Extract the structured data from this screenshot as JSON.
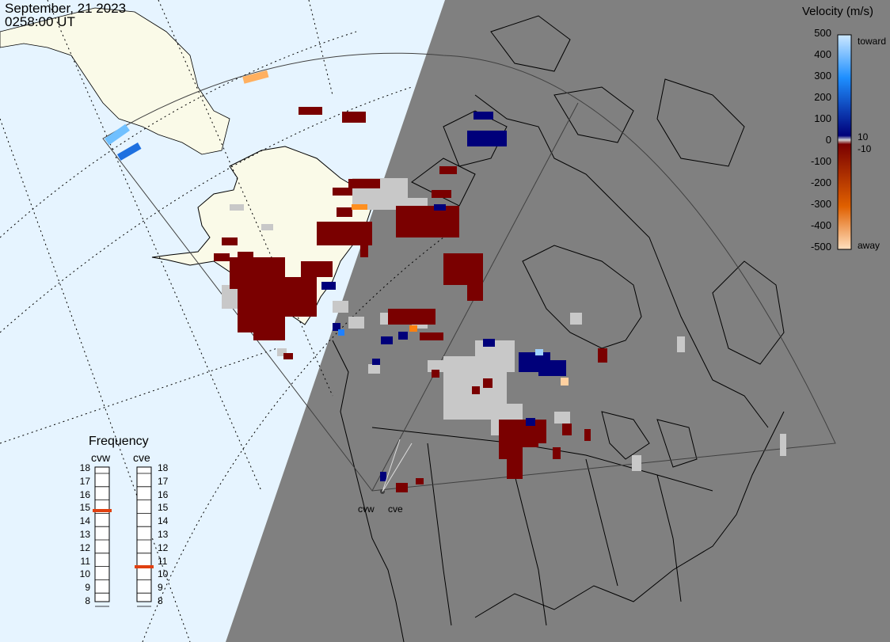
{
  "header": {
    "date": "September, 21 2023",
    "time": "0258:00 UT"
  },
  "colorbar": {
    "title": "Velocity (m/s)",
    "ticks": [
      "500",
      "400",
      "300",
      "200",
      "100",
      "0",
      "-100",
      "-200",
      "-300",
      "-400",
      "-500"
    ],
    "side_labels": {
      "toward": "toward",
      "ten": "10",
      "minus_ten": "-10",
      "away": "away"
    },
    "colors": {
      "toward_light": "#cde8ff",
      "toward_mid": "#1e8fff",
      "toward_dark": "#00007a",
      "zero": "#d0d0d0",
      "away_dark": "#7a0000",
      "away_mid": "#e06000",
      "away_light": "#ffe0bf"
    }
  },
  "frequency": {
    "title": "Frequency",
    "radars": [
      {
        "name": "cvw",
        "mhz": 15
      },
      {
        "name": "cve",
        "mhz": 11
      }
    ],
    "scale": [
      "18",
      "17",
      "16",
      "15",
      "14",
      "13",
      "12",
      "11",
      "10",
      "9",
      "8"
    ],
    "marker_color": "#e04010"
  },
  "map_colors": {
    "ocean_day": "#e6f4ff",
    "land_day": "#fafae8",
    "night": "#808080",
    "ground_scatter": "#c8c8c8"
  },
  "radar_labels": [
    "cvw",
    "cve"
  ]
}
